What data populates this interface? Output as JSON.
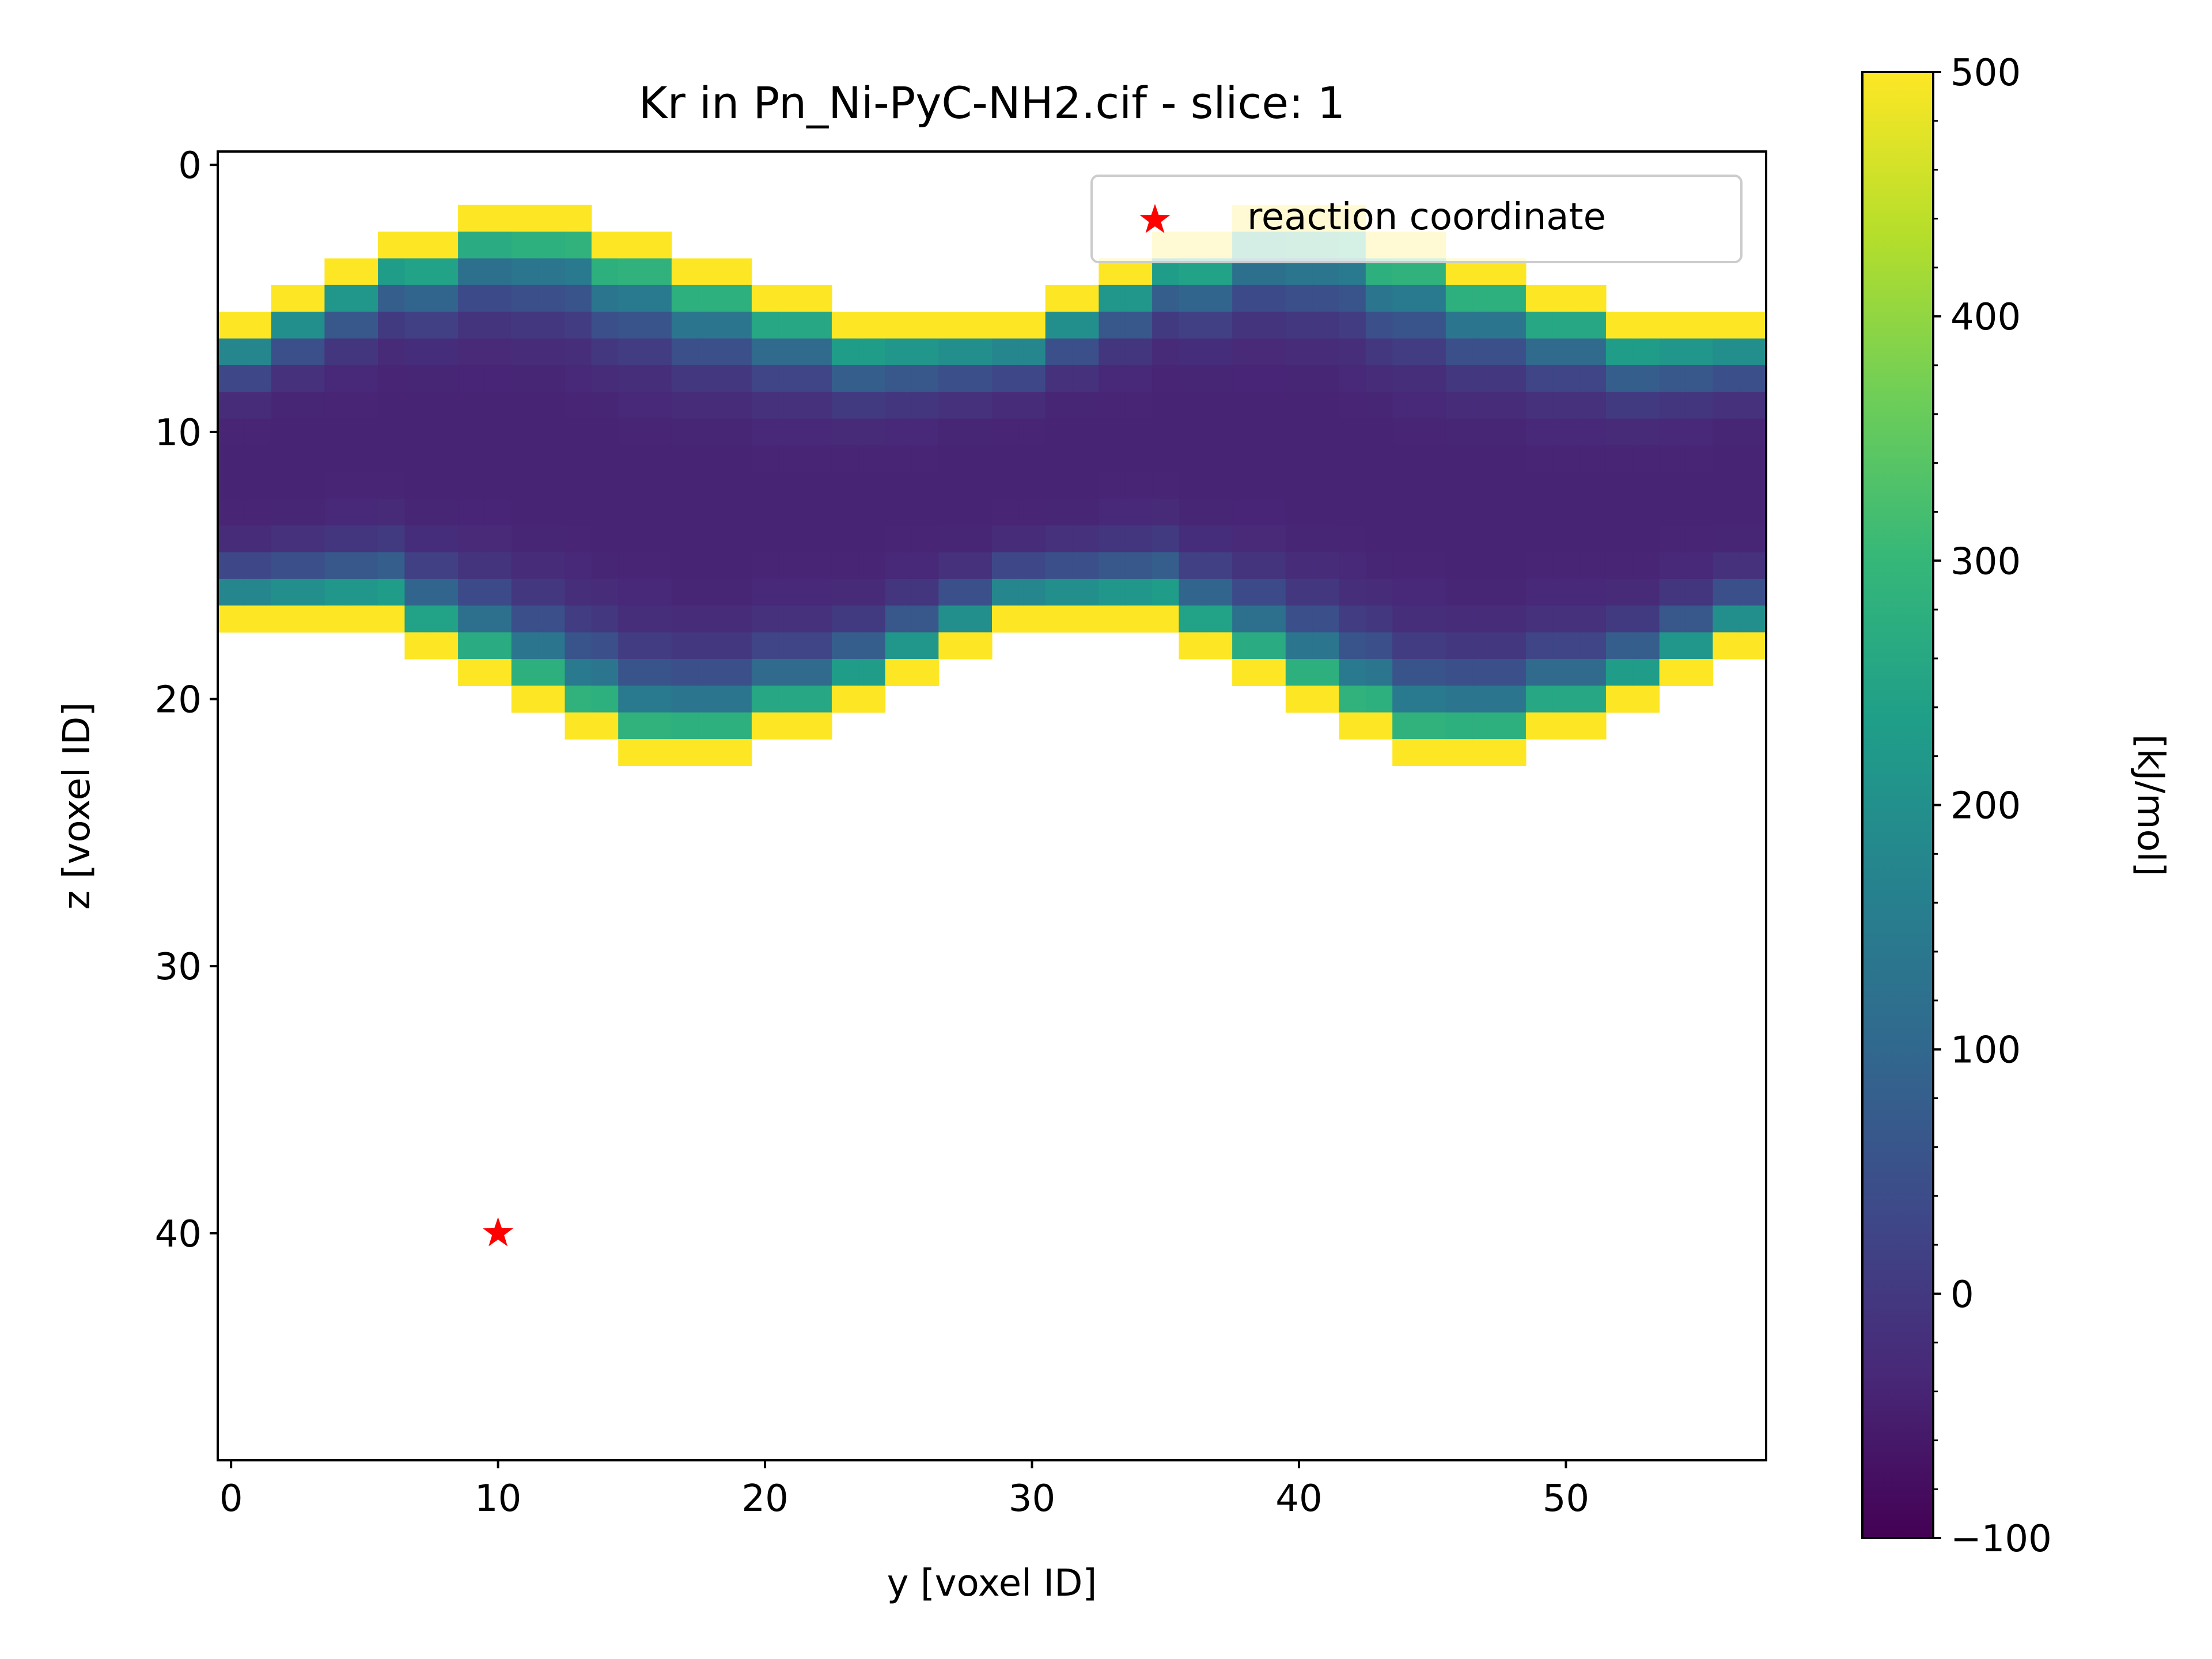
{
  "chart_data": {
    "type": "heatmap",
    "title": "Kr in Pn_Ni-PyC-NH2.cif - slice: 1",
    "xlabel": "y [voxel ID]",
    "ylabel": "z [voxel ID]",
    "xlim": [
      -0.5,
      57.5
    ],
    "ylim": [
      48.5,
      -0.5
    ],
    "x_ticks": [
      0,
      10,
      20,
      30,
      40,
      50
    ],
    "y_ticks": [
      0,
      10,
      20,
      30,
      40
    ],
    "grid": false,
    "colormap": "viridis",
    "colorbar": {
      "label": "[kJ/mol]",
      "range": [
        -100,
        500
      ],
      "ticks": [
        -100,
        0,
        100,
        200,
        300,
        400,
        500
      ]
    },
    "grid_shape": {
      "columns": 58,
      "rows": 49
    },
    "channel_model": {
      "note_values_estimated": true,
      "period_columns": 29,
      "upper_edge_by_column": [
        6,
        6,
        5,
        5,
        4,
        4,
        3,
        3,
        3,
        2,
        2,
        2,
        2,
        2,
        3,
        3,
        3,
        4,
        4,
        4,
        5,
        5,
        5,
        6,
        6,
        6,
        6,
        6,
        6,
        6,
        6,
        5,
        5,
        4,
        4,
        3,
        3,
        3,
        2,
        2,
        2,
        2,
        2,
        3,
        3,
        3,
        4,
        4,
        4,
        5,
        5,
        5,
        6,
        6,
        6,
        6,
        6,
        6
      ],
      "lower_edge_by_column": [
        17,
        17,
        17,
        17,
        17,
        17,
        17,
        18,
        18,
        19,
        19,
        20,
        20,
        21,
        21,
        22,
        22,
        22,
        22,
        22,
        21,
        21,
        21,
        20,
        20,
        19,
        19,
        18,
        18,
        17,
        17,
        17,
        17,
        17,
        17,
        17,
        18,
        18,
        19,
        19,
        20,
        20,
        21,
        21,
        22,
        22,
        22,
        22,
        22,
        21,
        21,
        21,
        20,
        20,
        19,
        19,
        18,
        18
      ],
      "min_energy_kj_mol": -40,
      "max_energy_kj_mol": 500
    },
    "series": [
      {
        "name": "reaction coordinate",
        "type": "scatter",
        "marker": "star",
        "color": "#ff0000",
        "x": [
          10
        ],
        "y": [
          40
        ]
      }
    ],
    "legend": {
      "placement": "upper right",
      "entries": [
        "reaction coordinate"
      ]
    }
  }
}
